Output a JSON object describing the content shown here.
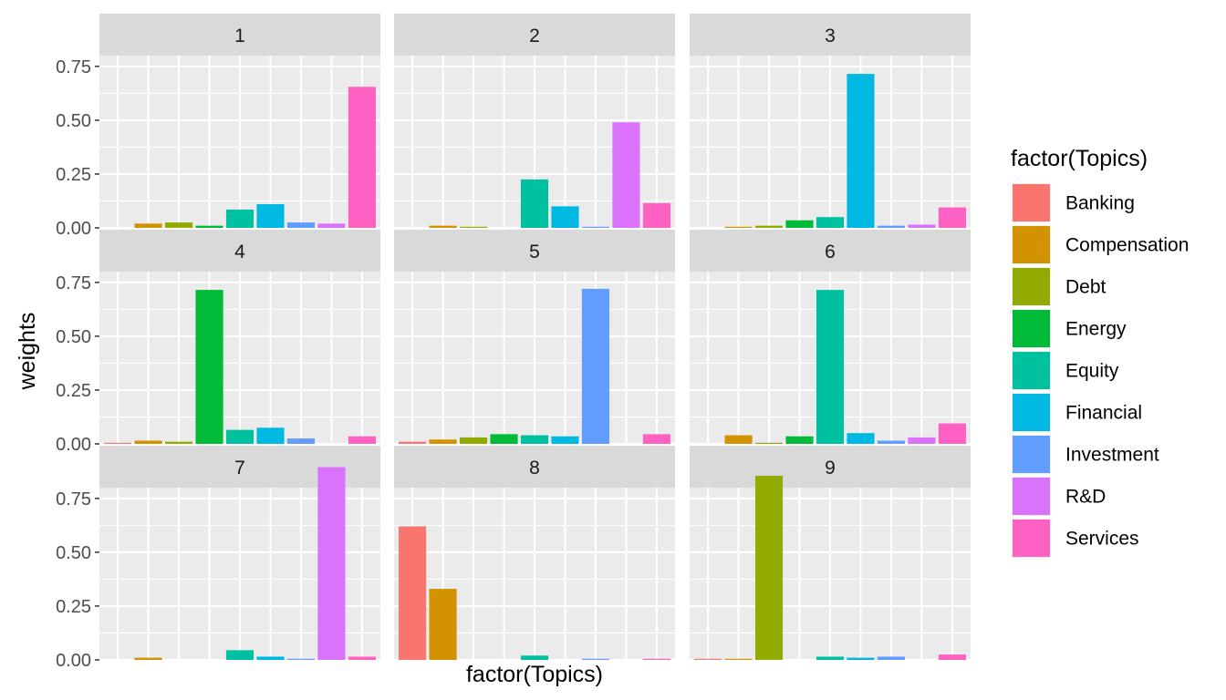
{
  "chart_data": {
    "type": "bar",
    "xlabel": "factor(Topics)",
    "ylabel": "weights",
    "ylim": [
      0,
      0.8
    ],
    "yticks": [
      0,
      0.25,
      0.5,
      0.75
    ],
    "ytick_labels": [
      "0.00",
      "0.25",
      "0.50",
      "0.75"
    ],
    "grid": true,
    "legend_position": "right",
    "legend": {
      "title": "factor(Topics)",
      "entries": [
        "Banking",
        "Compensation",
        "Debt",
        "Energy",
        "Equity",
        "Financial",
        "Investment",
        "R&D",
        "Services"
      ],
      "colors": [
        "#F8766D",
        "#D39200",
        "#93AA00",
        "#00BA38",
        "#00C19F",
        "#00B9E3",
        "#619CFF",
        "#DB72FB",
        "#FF61C3"
      ]
    },
    "categories": [
      "Banking",
      "Compensation",
      "Debt",
      "Energy",
      "Equity",
      "Financial",
      "Investment",
      "R&D",
      "Services"
    ],
    "panels": [
      {
        "label": "1",
        "values": [
          0.0,
          0.02,
          0.025,
          0.01,
          0.085,
          0.11,
          0.025,
          0.02,
          0.655
        ]
      },
      {
        "label": "2",
        "values": [
          0.0,
          0.01,
          0.005,
          0.0,
          0.225,
          0.1,
          0.005,
          0.49,
          0.115
        ]
      },
      {
        "label": "3",
        "values": [
          0.0,
          0.005,
          0.01,
          0.035,
          0.05,
          0.715,
          0.01,
          0.015,
          0.095
        ]
      },
      {
        "label": "4",
        "values": [
          0.005,
          0.015,
          0.01,
          0.715,
          0.065,
          0.075,
          0.025,
          0.0,
          0.035
        ]
      },
      {
        "label": "5",
        "values": [
          0.01,
          0.02,
          0.03,
          0.045,
          0.04,
          0.035,
          0.72,
          0.0,
          0.045
        ]
      },
      {
        "label": "6",
        "values": [
          0.0,
          0.04,
          0.005,
          0.035,
          0.715,
          0.05,
          0.015,
          0.03,
          0.095
        ]
      },
      {
        "label": "7",
        "values": [
          0.0,
          0.01,
          0.0,
          0.0,
          0.045,
          0.015,
          0.005,
          0.895,
          0.015
        ]
      },
      {
        "label": "8",
        "values": [
          0.62,
          0.33,
          0.0,
          0.0,
          0.02,
          0.0,
          0.005,
          0.0,
          0.005
        ]
      },
      {
        "label": "9",
        "values": [
          0.005,
          0.005,
          0.855,
          0.0,
          0.015,
          0.01,
          0.015,
          0.0,
          0.025
        ]
      }
    ]
  }
}
